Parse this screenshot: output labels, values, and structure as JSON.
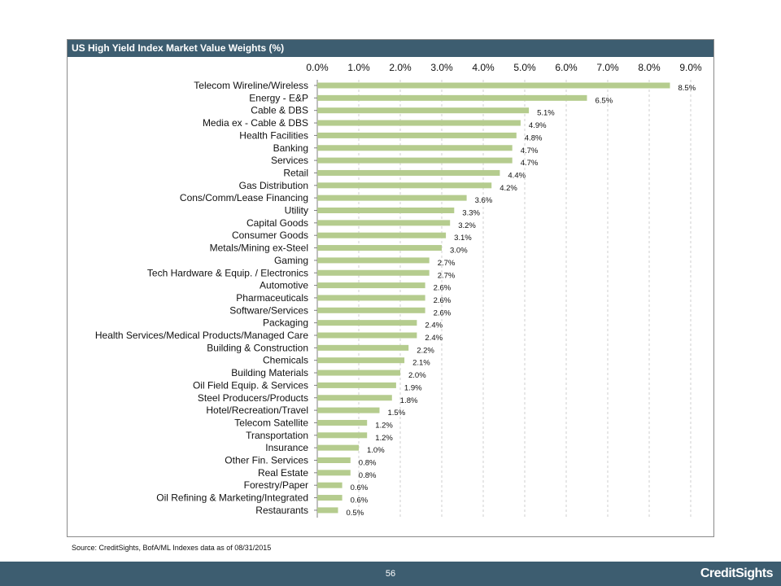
{
  "panel": {
    "title": "US High Yield Index Market Value Weights (%)"
  },
  "source_note": "Source: CreditSights, BofA/ML Indexes    data as of 08/31/2015",
  "footer": {
    "page_number": "56",
    "brand": "CreditSights"
  },
  "colors": {
    "bar": "#b5cc8e",
    "header": "#3d5d70",
    "grid": "#cfcfcf"
  },
  "chart_data": {
    "type": "bar",
    "orientation": "horizontal",
    "title": "US High Yield Index Market Value Weights (%)",
    "xlim": [
      0,
      9
    ],
    "x_ticks": [
      "0.0%",
      "1.0%",
      "2.0%",
      "3.0%",
      "4.0%",
      "5.0%",
      "6.0%",
      "7.0%",
      "8.0%",
      "9.0%"
    ],
    "x_axis_position": "top",
    "grid": true,
    "categories": [
      "Telecom Wireline/Wireless",
      "Energy - E&P",
      "Cable & DBS",
      "Media ex - Cable & DBS",
      "Health Facilities",
      "Banking",
      "Services",
      "Retail",
      "Gas Distribution",
      "Cons/Comm/Lease Financing",
      "Utility",
      "Capital Goods",
      "Consumer Goods",
      "Metals/Mining ex-Steel",
      "Gaming",
      "Tech Hardware & Equip. / Electronics",
      "Automotive",
      "Pharmaceuticals",
      "Software/Services",
      "Packaging",
      "Health Services/Medical Products/Managed Care",
      "Building & Construction",
      "Chemicals",
      "Building Materials",
      "Oil Field Equip. & Services",
      "Steel Producers/Products",
      "Hotel/Recreation/Travel",
      "Telecom Satellite",
      "Transportation",
      "Insurance",
      "Other Fin. Services",
      "Real Estate",
      "Forestry/Paper",
      "Oil Refining & Marketing/Integrated",
      "Restaurants"
    ],
    "values": [
      8.5,
      6.5,
      5.1,
      4.9,
      4.8,
      4.7,
      4.7,
      4.4,
      4.2,
      3.6,
      3.3,
      3.2,
      3.1,
      3.0,
      2.7,
      2.7,
      2.6,
      2.6,
      2.6,
      2.4,
      2.4,
      2.2,
      2.1,
      2.0,
      1.9,
      1.8,
      1.5,
      1.2,
      1.2,
      1.0,
      0.8,
      0.8,
      0.6,
      0.6,
      0.5
    ],
    "value_labels": [
      "8.5%",
      "6.5%",
      "5.1%",
      "4.9%",
      "4.8%",
      "4.7%",
      "4.7%",
      "4.4%",
      "4.2%",
      "3.6%",
      "3.3%",
      "3.2%",
      "3.1%",
      "3.0%",
      "2.7%",
      "2.7%",
      "2.6%",
      "2.6%",
      "2.6%",
      "2.4%",
      "2.4%",
      "2.2%",
      "2.1%",
      "2.0%",
      "1.9%",
      "1.8%",
      "1.5%",
      "1.2%",
      "1.2%",
      "1.0%",
      "0.8%",
      "0.8%",
      "0.6%",
      "0.6%",
      "0.5%"
    ]
  }
}
